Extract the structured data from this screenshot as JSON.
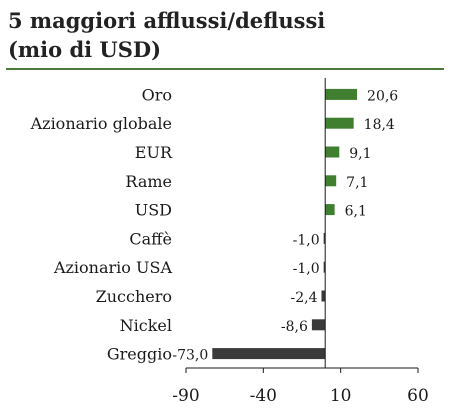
{
  "title_line1": "5 maggiori afflussi/deflussi",
  "title_line2": "(mio di USD)",
  "colors": {
    "positive": "#3f7f2f",
    "negative": "#3a3a3a",
    "rule": "#4a7a3a"
  },
  "chart_data": {
    "type": "bar",
    "orientation": "horizontal",
    "categories": [
      "Oro",
      "Azionario globale",
      "EUR",
      "Rame",
      "USD",
      "Caffè",
      "Azionario USA",
      "Zucchero",
      "Nickel",
      "Greggio"
    ],
    "values": [
      20.6,
      18.4,
      9.1,
      7.1,
      6.1,
      -1.0,
      -1.0,
      -2.4,
      -8.6,
      -73.0
    ],
    "value_labels": [
      "20,6",
      "18,4",
      "9,1",
      "7,1",
      "6,1",
      "-1,0",
      "-1,0",
      "-2,4",
      "-8,6",
      "-73,0"
    ],
    "xlim": [
      -90,
      60
    ],
    "xticks": [
      -90,
      -40,
      10,
      60
    ],
    "xtick_labels": [
      "-90",
      "-40",
      "10",
      "60"
    ],
    "grid": false,
    "legend": "none"
  }
}
